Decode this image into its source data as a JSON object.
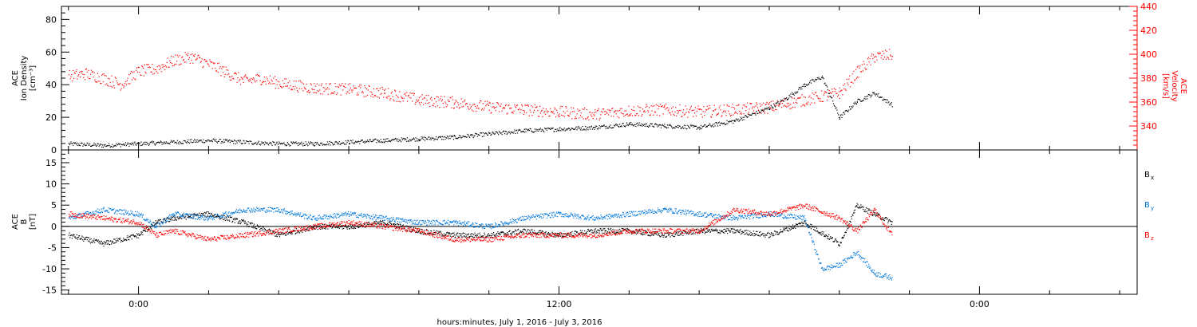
{
  "colors": {
    "axes": "#000000",
    "density": "#000000",
    "velocity": "#ff0000",
    "bx": "#000000",
    "by": "#0077dd",
    "bz": "#ff0000"
  },
  "chart_data": [
    {
      "type": "scatter",
      "panel": "top",
      "left_axis_label": [
        "ACE",
        "Ion Density",
        "[cm⁻³]"
      ],
      "right_axis_label": [
        "ACE",
        "Velocity",
        "[km/s]"
      ],
      "ylim_left": [
        0,
        88
      ],
      "yticks_left": [
        0,
        20,
        40,
        60,
        80
      ],
      "ylim_right": [
        320,
        440
      ],
      "yticks_right": [
        340,
        360,
        380,
        400,
        420,
        440
      ],
      "series": [
        {
          "key": "density",
          "axis": "left",
          "x": [
            -2,
            -1,
            0,
            1,
            2,
            3,
            4,
            5,
            6,
            7,
            8,
            9,
            10,
            11,
            12,
            13,
            14,
            15,
            16,
            17,
            18,
            18.5,
            19,
            19.5,
            20,
            20.5,
            21,
            21.5
          ],
          "y": [
            4,
            3,
            4,
            5,
            6,
            5,
            4,
            4,
            5,
            6,
            7,
            8,
            10,
            12,
            13,
            14,
            16,
            15,
            14,
            18,
            26,
            32,
            40,
            45,
            20,
            30,
            35,
            28
          ]
        },
        {
          "key": "velocity",
          "axis": "right",
          "x": [
            -2,
            -1.5,
            -1,
            -0.5,
            0,
            0.5,
            1,
            1.5,
            2,
            2.5,
            3,
            3.5,
            4,
            5,
            6,
            7,
            8,
            9,
            10,
            11,
            12,
            13,
            14,
            15,
            16,
            17,
            18,
            19,
            20,
            20.5,
            21,
            21.5
          ],
          "y": [
            382,
            384,
            380,
            375,
            386,
            388,
            395,
            398,
            392,
            385,
            378,
            380,
            376,
            372,
            371,
            368,
            362,
            360,
            356,
            354,
            352,
            350,
            353,
            354,
            352,
            354,
            356,
            362,
            368,
            385,
            398,
            400
          ]
        }
      ]
    },
    {
      "type": "scatter",
      "panel": "bottom",
      "left_axis_label": [
        "ACE",
        "B",
        "[nT]"
      ],
      "ylim": [
        -16,
        18
      ],
      "yticks": [
        -15,
        -10,
        -5,
        0,
        5,
        10,
        15
      ],
      "zero_line": true,
      "series": [
        {
          "key": "bx",
          "name": "Bx",
          "x": [
            -2,
            -1,
            0,
            0.5,
            1,
            2,
            3,
            4,
            5,
            6,
            7,
            8,
            9,
            10,
            11,
            12,
            13,
            14,
            15,
            16,
            17,
            18,
            19,
            20,
            20.5,
            21,
            21.5
          ],
          "y": [
            -2,
            -4,
            -2,
            1,
            2,
            3,
            1,
            -2,
            0,
            0,
            1,
            -1,
            -2,
            -2,
            -1,
            -2,
            -1,
            -1,
            -2,
            -1,
            -1,
            -2,
            1,
            -4,
            5,
            3,
            1
          ]
        },
        {
          "key": "by",
          "name": "By",
          "x": [
            -2,
            -1,
            0,
            0.5,
            1,
            2,
            3,
            4,
            5,
            6,
            7,
            8,
            9,
            10,
            11,
            12,
            13,
            14,
            15,
            16,
            17,
            18,
            19,
            19.5,
            20,
            20.5,
            21,
            21.5
          ],
          "y": [
            2,
            4,
            3,
            0,
            3,
            2,
            4,
            4,
            2,
            3,
            2,
            1,
            1,
            0,
            2,
            3,
            2,
            3,
            4,
            3,
            2,
            3,
            2,
            -10,
            -9,
            -6,
            -11,
            -12
          ]
        },
        {
          "key": "bz",
          "name": "Bz",
          "x": [
            -2,
            -1,
            0,
            0.5,
            1,
            2,
            3,
            4,
            5,
            6,
            7,
            8,
            9,
            10,
            11,
            12,
            13,
            14,
            15,
            16,
            17,
            18,
            19,
            20,
            20.5,
            21,
            21.5
          ],
          "y": [
            3,
            2,
            1,
            -2,
            -1,
            -3,
            -2,
            -1,
            0,
            1,
            0,
            -1,
            -3,
            -3,
            -2,
            -2,
            -2,
            -1,
            -1,
            -1,
            4,
            3,
            5,
            2,
            -1,
            4,
            -2
          ]
        }
      ],
      "legend": [
        "B",
        "B",
        "B"
      ],
      "legend_subscripts": [
        "x",
        "y",
        "z"
      ]
    }
  ],
  "x_axis": {
    "xlim": [
      -2.2,
      28.5
    ],
    "ticks": [
      0,
      12,
      24
    ],
    "tick_labels": [
      "0:00",
      "12:00",
      "0:00"
    ],
    "title": "hours:minutes, July  1, 2016 - July  3, 2016"
  }
}
